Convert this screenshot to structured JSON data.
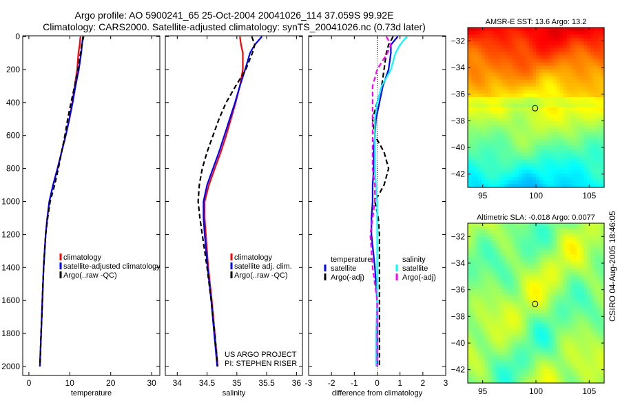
{
  "title_line1": "Argo profile: AO 5900241_65 25-Oct-2004 20041026_114 37.059S 99.92E",
  "title_line2": "Climatology: CARS2000. Satellite-adjusted climatology: synTS_20041026.nc (0.73d later)",
  "credit": "CSIRO 04-Aug-2005 18:46:05",
  "colors": {
    "red": "#ff0000",
    "blue": "#0000ff",
    "black": "#000000",
    "cyan": "#00ffff",
    "magenta": "#ff00ff"
  },
  "chart_data": [
    {
      "type": "line",
      "xlabel": "temperature",
      "ylabel": "",
      "xlim": [
        -1.5,
        32
      ],
      "ylim": [
        2050,
        0
      ],
      "xticks": [
        0,
        10,
        20,
        30
      ],
      "yticks": [
        0,
        200,
        400,
        600,
        800,
        1000,
        1200,
        1400,
        1600,
        1800,
        2000
      ],
      "depth": [
        0,
        50,
        100,
        200,
        300,
        400,
        500,
        600,
        700,
        800,
        900,
        1000,
        1100,
        1200,
        1400,
        1600,
        1800,
        2000
      ],
      "series": [
        {
          "name": "climatology",
          "color": "#ff0000",
          "dash": false,
          "values": [
            12.6,
            12.4,
            12.1,
            11.8,
            11.2,
            10.6,
            9.9,
            9.0,
            8.0,
            7.0,
            5.9,
            5.0,
            4.5,
            4.1,
            3.6,
            3.3,
            3.0,
            2.7
          ]
        },
        {
          "name": "satellite-adjusted climatology",
          "color": "#0000ff",
          "dash": false,
          "values": [
            13.2,
            13.0,
            12.8,
            12.2,
            11.4,
            10.7,
            9.9,
            9.0,
            8.0,
            7.0,
            5.9,
            5.0,
            4.5,
            4.1,
            3.6,
            3.3,
            3.0,
            2.7
          ]
        },
        {
          "name": "Argo(..raw -QC)",
          "color": "#000000",
          "dash": true,
          "values": [
            13.4,
            12.9,
            12.6,
            12.0,
            11.2,
            10.3,
            9.5,
            8.8,
            8.0,
            7.2,
            6.3,
            5.2,
            4.6,
            4.1,
            3.6,
            3.3,
            3.0,
            2.7
          ]
        }
      ]
    },
    {
      "type": "line",
      "xlabel": "salinity",
      "ylabel": "",
      "xlim": [
        33.8,
        36.1
      ],
      "ylim": [
        2050,
        0
      ],
      "xticks": [
        34,
        34.5,
        35,
        35.5,
        36
      ],
      "yticks": [],
      "depth": [
        0,
        50,
        100,
        200,
        300,
        400,
        500,
        600,
        700,
        800,
        900,
        1000,
        1100,
        1200,
        1400,
        1600,
        1800,
        2000
      ],
      "series": [
        {
          "name": "climatology",
          "color": "#ff0000",
          "dash": false,
          "values": [
            35.05,
            35.07,
            35.1,
            35.1,
            35.05,
            34.98,
            34.9,
            34.82,
            34.73,
            34.63,
            34.53,
            34.46,
            34.46,
            34.48,
            34.52,
            34.58,
            34.63,
            34.68
          ]
        },
        {
          "name": "satellite adj. clim.",
          "color": "#0000ff",
          "dash": false,
          "values": [
            35.42,
            35.3,
            35.22,
            35.14,
            35.05,
            34.97,
            34.88,
            34.79,
            34.7,
            34.6,
            34.5,
            34.44,
            34.44,
            34.46,
            34.51,
            34.57,
            34.62,
            34.67
          ]
        },
        {
          "name": "Argo(..raw -QC)",
          "color": "#000000",
          "dash": true,
          "values": [
            35.25,
            35.3,
            35.26,
            35.15,
            34.98,
            34.82,
            34.7,
            34.6,
            34.5,
            34.42,
            34.37,
            34.35,
            34.38,
            34.42,
            34.5,
            34.57,
            34.63,
            34.68
          ]
        }
      ],
      "annotation": [
        "US ARGO PROJECT",
        "PI: STEPHEN RISER"
      ]
    },
    {
      "type": "line",
      "xlabel": "difference from climatology",
      "ylabel": "",
      "xlim": [
        -3,
        3
      ],
      "ylim": [
        2050,
        0
      ],
      "xticks": [
        -3,
        -2,
        -1,
        0,
        1,
        2,
        3
      ],
      "yticks": [],
      "depth": [
        0,
        50,
        100,
        200,
        300,
        400,
        500,
        600,
        700,
        800,
        900,
        1000,
        1100,
        1200,
        1400,
        1600,
        1800,
        2000
      ],
      "legend_headers": [
        "temperature",
        "salinity"
      ],
      "series": [
        {
          "name": "satellite",
          "group": "temperature",
          "color": "#0000ff",
          "dash": false,
          "values": [
            0.9,
            0.6,
            0.6,
            0.5,
            0.25,
            0.1,
            -0.05,
            -0.1,
            -0.15,
            -0.15,
            -0.2,
            -0.2,
            -0.25,
            -0.25,
            -0.1,
            0.0,
            0.0,
            0.0
          ]
        },
        {
          "name": "Argo(-adj)",
          "group": "temperature",
          "color": "#000000",
          "dash": true,
          "values": [
            0.7,
            0.5,
            0.4,
            0.3,
            0.2,
            0.0,
            -0.2,
            -0.1,
            0.3,
            0.5,
            0.3,
            -0.1,
            0.05,
            0.1,
            0.1,
            0.1,
            0.1,
            0.1
          ]
        },
        {
          "name": "satellite",
          "group": "salinity",
          "color": "#00ffff",
          "dash": false,
          "values": [
            1.3,
            1.0,
            0.8,
            0.6,
            0.2,
            0.0,
            -0.1,
            -0.1,
            -0.1,
            -0.1,
            -0.05,
            0.0,
            0.0,
            0.0,
            0.0,
            0.0,
            -0.05,
            -0.05
          ]
        },
        {
          "name": "Argo(-adj)",
          "group": "salinity",
          "color": "#ff00ff",
          "dash": true,
          "values": [
            0.4,
            0.6,
            0.45,
            0.0,
            -0.2,
            -0.2,
            -0.2,
            -0.2,
            -0.2,
            -0.2,
            -0.1,
            -0.1,
            -0.2,
            -0.3,
            -0.2,
            0.0,
            0.0,
            0.0
          ]
        }
      ]
    },
    {
      "type": "heatmap",
      "title": "AMSR-E SST: 13.6 Argo: 13.2",
      "xlim": [
        93.6,
        106.4
      ],
      "ylim": [
        -43,
        -31
      ],
      "xticks": [
        95,
        100,
        105
      ],
      "yticks": [
        -32,
        -34,
        -36,
        -38,
        -40,
        -42
      ],
      "marker": {
        "lon": 99.92,
        "lat": -37.059
      }
    },
    {
      "type": "heatmap",
      "title": "Altimetric SLA: -0.018 Argo: 0.0077",
      "xlim": [
        93.6,
        106.4
      ],
      "ylim": [
        -43,
        -31
      ],
      "xticks": [
        95,
        100,
        105
      ],
      "yticks": [
        -32,
        -34,
        -36,
        -38,
        -40,
        -42
      ],
      "marker": {
        "lon": 99.92,
        "lat": -37.059
      }
    }
  ]
}
